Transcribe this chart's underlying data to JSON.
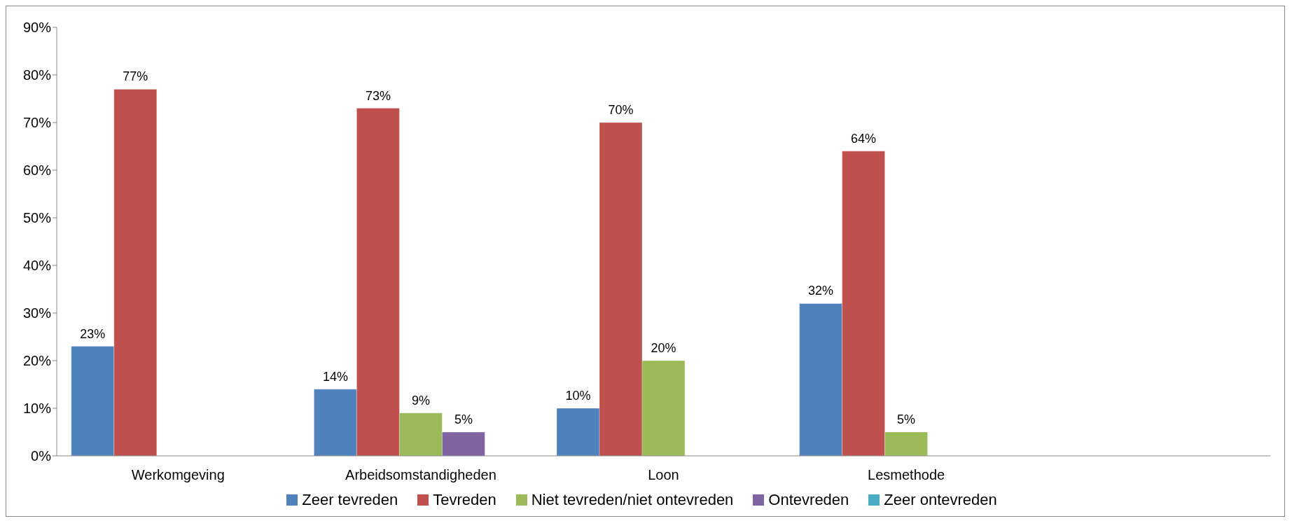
{
  "chart_data": {
    "type": "bar",
    "categories": [
      "Werkomgeving",
      "Arbeidsomstandigheden",
      "Loon",
      "Lesmethode",
      null
    ],
    "series": [
      {
        "name": "Zeer tevreden",
        "color": "#4f81bd",
        "values": [
          23,
          14,
          10,
          32,
          null
        ],
        "value_labels": [
          "23%",
          "14%",
          "10%",
          "32%",
          null
        ]
      },
      {
        "name": "Tevreden",
        "color": "#c0504d",
        "values": [
          77,
          73,
          70,
          64,
          null
        ],
        "value_labels": [
          "77%",
          "73%",
          "70%",
          "64%",
          null
        ]
      },
      {
        "name": "Niet tevreden/niet ontevreden",
        "color": "#9bbb59",
        "values": [
          null,
          9,
          20,
          5,
          null
        ],
        "value_labels": [
          null,
          "9%",
          "20%",
          "5%",
          null
        ]
      },
      {
        "name": "Ontevreden",
        "color": "#8064a2",
        "values": [
          null,
          5,
          null,
          null,
          null
        ],
        "value_labels": [
          null,
          "5%",
          null,
          null,
          null
        ]
      },
      {
        "name": "Zeer ontevreden",
        "color": "#4bacc6",
        "values": [
          null,
          null,
          null,
          null,
          null
        ],
        "value_labels": [
          null,
          null,
          null,
          null,
          null
        ]
      }
    ],
    "ylim": [
      0,
      90
    ],
    "yticks": [
      {
        "value": 0,
        "label": "0%"
      },
      {
        "value": 10,
        "label": "10%"
      },
      {
        "value": 20,
        "label": "20%"
      },
      {
        "value": 30,
        "label": "30%"
      },
      {
        "value": 40,
        "label": "40%"
      },
      {
        "value": 50,
        "label": "50%"
      },
      {
        "value": 60,
        "label": "60%"
      },
      {
        "value": 70,
        "label": "70%"
      },
      {
        "value": 80,
        "label": "80%"
      },
      {
        "value": 90,
        "label": "90%"
      }
    ],
    "grid": false,
    "legend": "bottom"
  }
}
